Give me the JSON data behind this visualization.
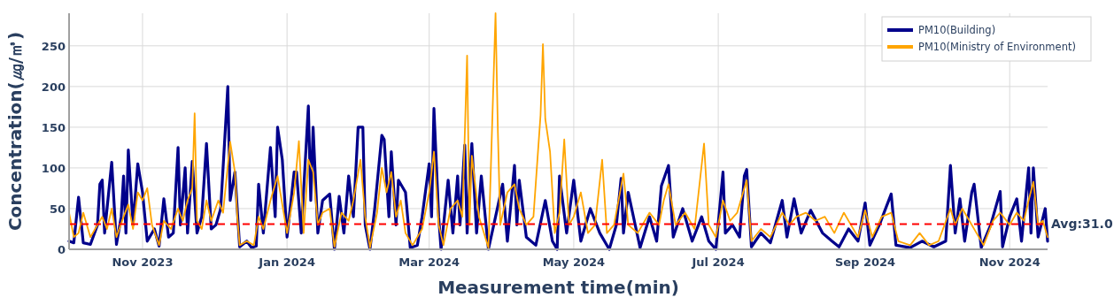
{
  "chart_data": {
    "type": "line",
    "xlabel": "Measurement time(min)",
    "ylabel": "Concentration(㎍/㎥)",
    "xlim": [
      "2023-10-01",
      "2024-11-17"
    ],
    "ylim": [
      0,
      290
    ],
    "yticks": [
      0,
      50,
      100,
      150,
      200,
      250
    ],
    "xticks": [
      {
        "value": "2023-11-01",
        "label": "Nov 2023"
      },
      {
        "value": "2024-01-01",
        "label": "Jan 2024"
      },
      {
        "value": "2024-03-01",
        "label": "Mar 2024"
      },
      {
        "value": "2024-05-01",
        "label": "May 2024"
      },
      {
        "value": "2024-07-01",
        "label": "Jul 2024"
      },
      {
        "value": "2024-09-01",
        "label": "Sep 2024"
      },
      {
        "value": "2024-11-01",
        "label": "Nov 2024"
      }
    ],
    "grid": true,
    "legend": "top right",
    "ref_lines": [
      {
        "axis": "y",
        "value": 31.0,
        "label": "Avg:31.0",
        "color": "#ff0000",
        "line_style": "dashed"
      }
    ],
    "series": [
      {
        "name": "PM10(Building)",
        "color": "#00008b",
        "x": [
          "2023-10-01",
          "2023-10-03",
          "2023-10-05",
          "2023-10-07",
          "2023-10-10",
          "2023-10-13",
          "2023-10-14",
          "2023-10-15",
          "2023-10-16",
          "2023-10-19",
          "2023-10-21",
          "2023-10-23",
          "2023-10-24",
          "2023-10-25",
          "2023-10-26",
          "2023-10-28",
          "2023-10-30",
          "2023-11-01",
          "2023-11-03",
          "2023-11-06",
          "2023-11-08",
          "2023-11-10",
          "2023-11-12",
          "2023-11-14",
          "2023-11-16",
          "2023-11-17",
          "2023-11-19",
          "2023-11-20",
          "2023-11-22",
          "2023-11-24",
          "2023-11-26",
          "2023-11-28",
          "2023-11-30",
          "2023-12-02",
          "2023-12-04",
          "2023-12-07",
          "2023-12-08",
          "2023-12-10",
          "2023-12-12",
          "2023-12-15",
          "2023-12-17",
          "2023-12-19",
          "2023-12-20",
          "2023-12-22",
          "2023-12-25",
          "2023-12-27",
          "2023-12-28",
          "2023-12-30",
          "2024-01-01",
          "2024-01-04",
          "2024-01-05",
          "2024-01-07",
          "2024-01-10",
          "2024-01-11",
          "2024-01-12",
          "2024-01-14",
          "2024-01-16",
          "2024-01-19",
          "2024-01-21",
          "2024-01-23",
          "2024-01-25",
          "2024-01-27",
          "2024-01-29",
          "2024-01-31",
          "2024-02-02",
          "2024-02-03",
          "2024-02-05",
          "2024-02-07",
          "2024-02-10",
          "2024-02-11",
          "2024-02-13",
          "2024-02-14",
          "2024-02-16",
          "2024-02-17",
          "2024-02-20",
          "2024-02-22",
          "2024-02-25",
          "2024-02-27",
          "2024-03-01",
          "2024-03-02",
          "2024-03-03",
          "2024-03-05",
          "2024-03-06",
          "2024-03-09",
          "2024-03-11",
          "2024-03-13",
          "2024-03-14",
          "2024-03-16",
          "2024-03-17",
          "2024-03-19",
          "2024-03-21",
          "2024-03-23",
          "2024-03-26",
          "2024-03-29",
          "2024-04-01",
          "2024-04-03",
          "2024-04-06",
          "2024-04-07",
          "2024-04-08",
          "2024-04-11",
          "2024-04-15",
          "2024-04-19",
          "2024-04-22",
          "2024-04-24",
          "2024-04-25",
          "2024-04-28",
          "2024-05-01",
          "2024-05-04",
          "2024-05-08",
          "2024-05-12",
          "2024-05-16",
          "2024-05-19",
          "2024-05-21",
          "2024-05-22",
          "2024-05-24",
          "2024-05-29",
          "2024-06-02",
          "2024-06-05",
          "2024-06-07",
          "2024-06-10",
          "2024-06-12",
          "2024-06-16",
          "2024-06-20",
          "2024-06-24",
          "2024-06-27",
          "2024-06-30",
          "2024-07-03",
          "2024-07-04",
          "2024-07-07",
          "2024-07-10",
          "2024-07-12",
          "2024-07-13",
          "2024-07-15",
          "2024-07-19",
          "2024-07-23",
          "2024-07-28",
          "2024-07-30",
          "2024-08-02",
          "2024-08-05",
          "2024-08-09",
          "2024-08-14",
          "2024-08-18",
          "2024-08-21",
          "2024-08-25",
          "2024-08-29",
          "2024-09-01",
          "2024-09-03",
          "2024-09-07",
          "2024-09-12",
          "2024-09-14",
          "2024-09-20",
          "2024-09-25",
          "2024-09-30",
          "2024-10-05",
          "2024-10-07",
          "2024-10-09",
          "2024-10-11",
          "2024-10-13",
          "2024-10-16",
          "2024-10-17",
          "2024-10-20",
          "2024-10-24",
          "2024-10-28",
          "2024-10-29",
          "2024-11-01",
          "2024-11-04",
          "2024-11-06",
          "2024-11-09",
          "2024-11-10",
          "2024-11-11",
          "2024-11-13",
          "2024-11-16",
          "2024-11-17"
        ],
        "values": [
          10,
          8,
          64,
          8,
          6,
          30,
          80,
          85,
          20,
          107,
          6,
          40,
          90,
          20,
          122,
          30,
          105,
          70,
          10,
          25,
          4,
          62,
          15,
          20,
          125,
          30,
          100,
          20,
          108,
          20,
          40,
          130,
          25,
          30,
          50,
          200,
          60,
          95,
          3,
          10,
          2,
          4,
          80,
          20,
          125,
          40,
          150,
          110,
          15,
          95,
          95,
          20,
          176,
          60,
          150,
          20,
          60,
          68,
          0,
          65,
          20,
          90,
          40,
          150,
          150,
          30,
          0,
          50,
          140,
          135,
          40,
          120,
          30,
          85,
          70,
          2,
          5,
          40,
          105,
          40,
          173,
          40,
          0,
          85,
          20,
          90,
          30,
          128,
          20,
          130,
          20,
          90,
          0,
          40,
          80,
          10,
          103,
          30,
          85,
          15,
          5,
          60,
          10,
          0,
          90,
          20,
          85,
          10,
          50,
          20,
          0,
          30,
          87,
          20,
          70,
          2,
          40,
          10,
          78,
          103,
          15,
          50,
          10,
          40,
          10,
          0,
          95,
          20,
          30,
          15,
          90,
          98,
          3,
          20,
          8,
          60,
          15,
          62,
          20,
          48,
          20,
          10,
          3,
          25,
          10,
          57,
          5,
          30,
          68,
          5,
          2,
          10,
          3,
          10,
          103,
          20,
          62,
          10,
          70,
          80,
          2,
          30,
          71,
          3,
          40,
          62,
          10,
          100,
          20,
          100,
          15,
          50,
          10
        ]
      },
      {
        "name": "PM10(Ministry of Environment)",
        "color": "#ffa500",
        "x": [
          "2023-10-01",
          "2023-10-03",
          "2023-10-05",
          "2023-10-07",
          "2023-10-10",
          "2023-10-13",
          "2023-10-15",
          "2023-10-17",
          "2023-10-19",
          "2023-10-21",
          "2023-10-24",
          "2023-10-26",
          "2023-10-28",
          "2023-10-30",
          "2023-11-01",
          "2023-11-03",
          "2023-11-05",
          "2023-11-08",
          "2023-11-10",
          "2023-11-13",
          "2023-11-16",
          "2023-11-18",
          "2023-11-20",
          "2023-11-22",
          "2023-11-23",
          "2023-11-24",
          "2023-11-26",
          "2023-11-28",
          "2023-11-30",
          "2023-12-03",
          "2023-12-05",
          "2023-12-08",
          "2023-12-10",
          "2023-12-11",
          "2023-12-12",
          "2023-12-15",
          "2023-12-18",
          "2023-12-20",
          "2023-12-22",
          "2023-12-25",
          "2023-12-28",
          "2023-12-30",
          "2024-01-01",
          "2024-01-04",
          "2024-01-06",
          "2024-01-08",
          "2024-01-10",
          "2024-01-12",
          "2024-01-14",
          "2024-01-16",
          "2024-01-19",
          "2024-01-21",
          "2024-01-24",
          "2024-01-27",
          "2024-01-29",
          "2024-02-01",
          "2024-02-03",
          "2024-02-05",
          "2024-02-08",
          "2024-02-10",
          "2024-02-12",
          "2024-02-14",
          "2024-02-16",
          "2024-02-18",
          "2024-02-20",
          "2024-02-23",
          "2024-02-27",
          "2024-03-01",
          "2024-03-03",
          "2024-03-05",
          "2024-03-07",
          "2024-03-10",
          "2024-03-13",
          "2024-03-15",
          "2024-03-17",
          "2024-03-18",
          "2024-03-19",
          "2024-03-22",
          "2024-03-26",
          "2024-03-29",
          "2024-03-30",
          "2024-03-31",
          "2024-04-03",
          "2024-04-06",
          "2024-04-08",
          "2024-04-11",
          "2024-04-14",
          "2024-04-17",
          "2024-04-18",
          "2024-04-19",
          "2024-04-21",
          "2024-04-23",
          "2024-04-25",
          "2024-04-27",
          "2024-04-29",
          "2024-05-01",
          "2024-05-04",
          "2024-05-07",
          "2024-05-10",
          "2024-05-13",
          "2024-05-15",
          "2024-05-18",
          "2024-05-22",
          "2024-05-24",
          "2024-05-28",
          "2024-06-02",
          "2024-06-06",
          "2024-06-08",
          "2024-06-10",
          "2024-06-13",
          "2024-06-17",
          "2024-06-21",
          "2024-06-25",
          "2024-06-27",
          "2024-06-30",
          "2024-07-03",
          "2024-07-06",
          "2024-07-09",
          "2024-07-13",
          "2024-07-15",
          "2024-07-19",
          "2024-07-23",
          "2024-07-28",
          "2024-07-31",
          "2024-08-03",
          "2024-08-07",
          "2024-08-11",
          "2024-08-15",
          "2024-08-19",
          "2024-08-23",
          "2024-08-26",
          "2024-08-29",
          "2024-09-01",
          "2024-09-04",
          "2024-09-08",
          "2024-09-12",
          "2024-09-15",
          "2024-09-20",
          "2024-09-24",
          "2024-09-28",
          "2024-10-02",
          "2024-10-07",
          "2024-10-09",
          "2024-10-12",
          "2024-10-15",
          "2024-10-18",
          "2024-10-21",
          "2024-10-25",
          "2024-10-28",
          "2024-11-01",
          "2024-11-04",
          "2024-11-07",
          "2024-11-09",
          "2024-11-11",
          "2024-11-13",
          "2024-11-15",
          "2024-11-17"
        ],
        "values": [
          45,
          15,
          20,
          45,
          15,
          30,
          40,
          25,
          50,
          15,
          40,
          55,
          25,
          70,
          60,
          75,
          30,
          5,
          35,
          25,
          50,
          35,
          60,
          75,
          167,
          35,
          25,
          60,
          35,
          60,
          45,
          132,
          95,
          40,
          5,
          10,
          5,
          40,
          25,
          60,
          90,
          55,
          20,
          70,
          133,
          20,
          110,
          95,
          30,
          45,
          50,
          3,
          45,
          35,
          60,
          110,
          40,
          2,
          45,
          100,
          70,
          95,
          40,
          60,
          20,
          5,
          25,
          70,
          120,
          30,
          5,
          50,
          60,
          40,
          238,
          30,
          115,
          40,
          2,
          290,
          143,
          30,
          70,
          80,
          50,
          30,
          40,
          165,
          252,
          160,
          120,
          20,
          45,
          135,
          30,
          40,
          70,
          20,
          30,
          110,
          20,
          30,
          93,
          30,
          20,
          45,
          30,
          60,
          80,
          30,
          45,
          25,
          130,
          30,
          15,
          60,
          35,
          45,
          85,
          10,
          25,
          15,
          45,
          30,
          40,
          45,
          35,
          40,
          20,
          45,
          30,
          15,
          48,
          15,
          40,
          45,
          10,
          5,
          20,
          5,
          10,
          50,
          30,
          50,
          35,
          20,
          5,
          35,
          45,
          30,
          45,
          35,
          60,
          83,
          30,
          35,
          15
        ]
      }
    ]
  }
}
